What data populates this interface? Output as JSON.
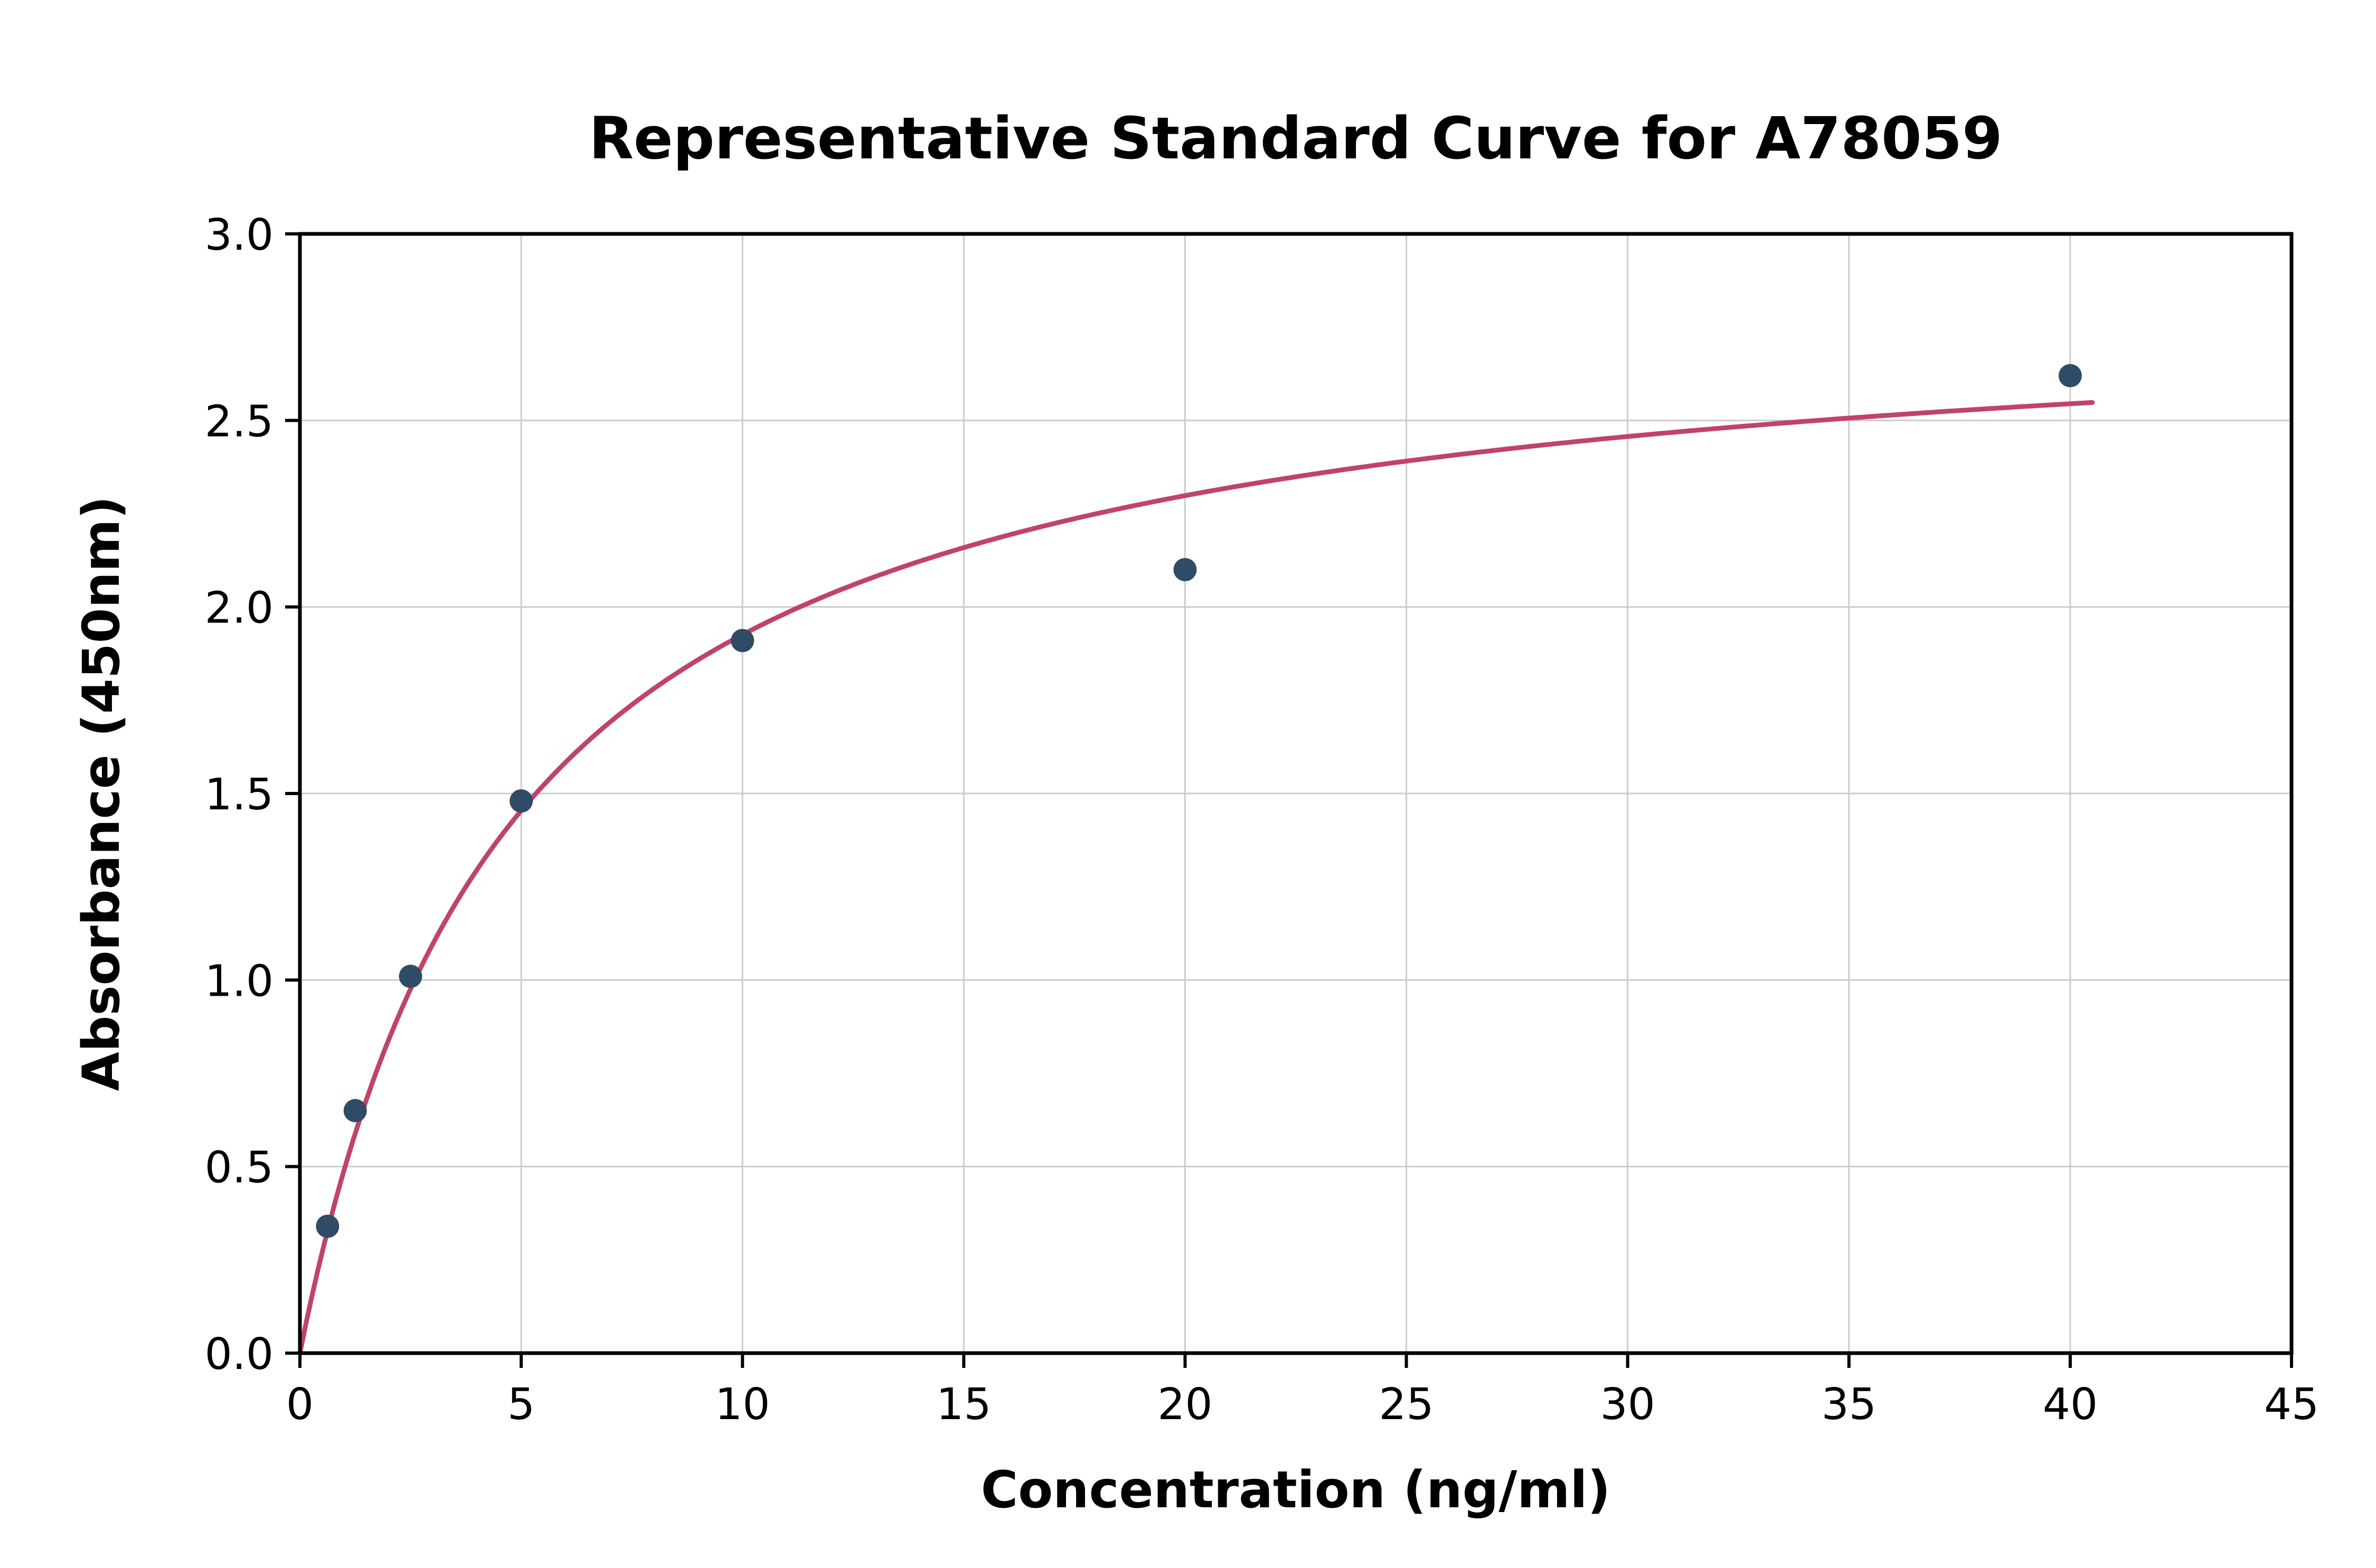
{
  "chart_data": {
    "type": "scatter",
    "title": "Representative Standard Curve for A78059",
    "xlabel": "Concentration (ng/ml)",
    "ylabel": "Absorbance (450nm)",
    "xlim": [
      0,
      45
    ],
    "ylim": [
      0,
      3
    ],
    "xticks": [
      0,
      5,
      10,
      15,
      20,
      25,
      30,
      35,
      40,
      45
    ],
    "yticks": [
      0.0,
      0.5,
      1.0,
      1.5,
      2.0,
      2.5,
      3.0
    ],
    "grid": true,
    "legend_position": "none",
    "points": [
      {
        "x": 0.625,
        "y": 0.34
      },
      {
        "x": 1.25,
        "y": 0.65
      },
      {
        "x": 2.5,
        "y": 1.01
      },
      {
        "x": 5,
        "y": 1.48
      },
      {
        "x": 10,
        "y": 1.91
      },
      {
        "x": 20,
        "y": 2.1
      },
      {
        "x": 40,
        "y": 2.62
      }
    ],
    "fit_curve": {
      "model": "michaelis-menten",
      "vmax": 2.85,
      "k": 4.8,
      "x_start": 0,
      "x_end": 40.5
    },
    "colors": {
      "points": "#2f4b66",
      "curve": "#c0436b",
      "grid": "#cccccc",
      "axis": "#000000",
      "background": "#ffffff"
    }
  }
}
